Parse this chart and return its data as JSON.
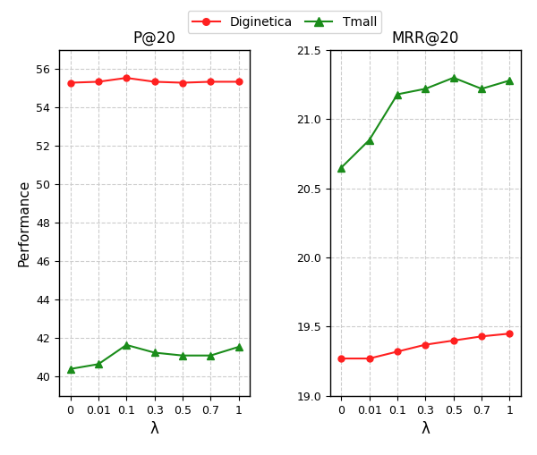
{
  "x_labels": [
    "0",
    "0.01",
    "0.1",
    "0.3",
    "0.5",
    "0.7",
    "1"
  ],
  "x_indices": [
    0,
    1,
    2,
    3,
    4,
    5,
    6
  ],
  "p20_diginetica": [
    55.3,
    55.35,
    55.55,
    55.35,
    55.3,
    55.35,
    55.35
  ],
  "p20_tmall": [
    40.4,
    40.65,
    41.65,
    41.25,
    41.1,
    41.1,
    41.55
  ],
  "mrr20_diginetica": [
    19.27,
    19.27,
    19.32,
    19.37,
    19.4,
    19.43,
    19.45
  ],
  "mrr20_tmall": [
    20.65,
    20.85,
    21.18,
    21.22,
    21.3,
    21.22,
    21.28
  ],
  "p20_ylim": [
    39,
    57
  ],
  "p20_yticks": [
    40,
    42,
    44,
    46,
    48,
    50,
    52,
    54,
    56
  ],
  "mrr20_ylim": [
    19.0,
    21.5
  ],
  "mrr20_yticks": [
    19.0,
    19.5,
    20.0,
    20.5,
    21.0,
    21.5
  ],
  "diginetica_color": "#ff2020",
  "tmall_color": "#1a8c1a",
  "title_p20": "P@20",
  "title_mrr20": "MRR@20",
  "xlabel": "λ",
  "ylabel": "Performance",
  "legend_labels": [
    "Diginetica",
    "Tmall"
  ],
  "background_color": "#ffffff",
  "grid_color": "#cccccc"
}
